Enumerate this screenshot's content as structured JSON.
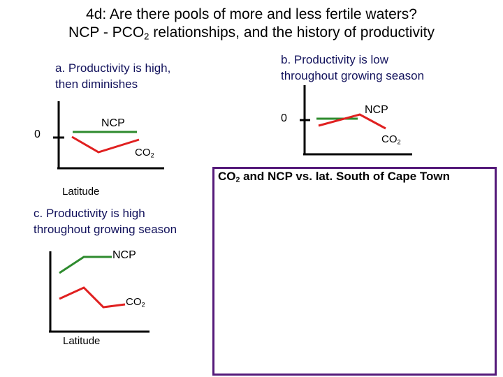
{
  "slide": {
    "title_line1": "4d: Are there pools of more and less fertile waters?",
    "title_line2_pre": "NCP - PCO",
    "title_line2_sub": "2",
    "title_line2_post": " relationships, and the history of productivity"
  },
  "panel_a": {
    "caption_line1": "a. Productivity is high,",
    "caption_line2": "then diminishes",
    "zero_label": "0",
    "ncp_label": "NCP",
    "co2_label": "CO",
    "co2_sub": "2",
    "xaxis_label": "Latitude"
  },
  "panel_b": {
    "caption_line1": "b. Productivity is low",
    "caption_line2": "throughout growing season",
    "zero_label": "0",
    "ncp_label": "NCP",
    "co2_label": "CO",
    "co2_sub": "2"
  },
  "panel_c": {
    "caption_line1": "c. Productivity is high",
    "caption_line2": "throughout growing season",
    "ncp_label": "NCP",
    "co2_label": "CO",
    "co2_sub": "2",
    "xaxis_label": "Latitude"
  },
  "frame": {
    "title_pre": "CO",
    "title_sub": "2",
    "title_post": " and NCP vs. lat. South of Cape Town"
  },
  "colors": {
    "ncp": "#2e8b2e",
    "co2": "#e02020",
    "axis": "#000000",
    "frame_border": "#551a7a"
  }
}
